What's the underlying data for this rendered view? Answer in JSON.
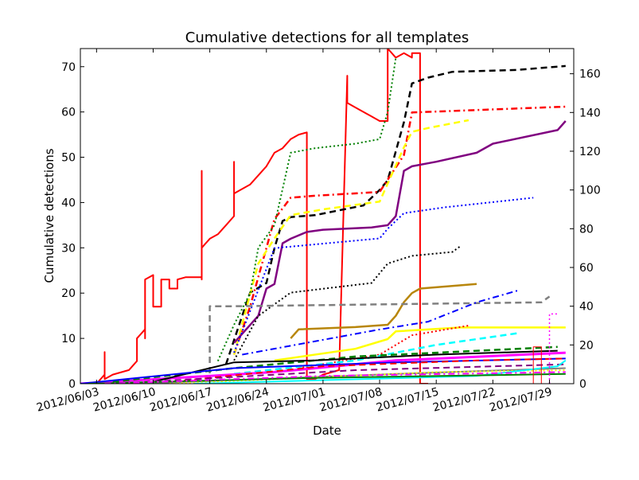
{
  "chart_data": {
    "type": "line",
    "title": "Cumulative detections for all templates",
    "xlabel": "Date",
    "ylabel": "Cumulative detections",
    "x_range": [
      "2012/06/01",
      "2012/08/01"
    ],
    "ylim": [
      0,
      74
    ],
    "y2lim": [
      0,
      173
    ],
    "x_ticks": [
      "2012/06/03",
      "2012/06/10",
      "2012/06/17",
      "2012/06/24",
      "2012/07/01",
      "2012/07/08",
      "2012/07/15",
      "2012/07/22",
      "2012/07/29"
    ],
    "y_ticks": [
      0,
      10,
      20,
      30,
      40,
      50,
      60,
      70
    ],
    "y2_ticks": [
      0,
      20,
      40,
      60,
      80,
      100,
      120,
      140,
      160
    ],
    "grid": false,
    "legend": "none",
    "series": [
      {
        "color": "#ff0000",
        "style": "solid",
        "width": 2,
        "axis": "left",
        "points": [
          [
            "2012/06/01",
            0
          ],
          [
            "2012/06/03",
            0
          ],
          [
            "2012/06/04",
            2
          ],
          [
            "2012/06/04",
            7
          ],
          [
            "2012/06/04",
            1
          ],
          [
            "2012/06/05",
            2
          ],
          [
            "2012/06/07",
            3
          ],
          [
            "2012/06/08",
            5
          ],
          [
            "2012/06/08",
            10
          ],
          [
            "2012/06/09",
            12
          ],
          [
            "2012/06/09",
            16
          ],
          [
            "2012/06/09",
            10
          ],
          [
            "2012/06/09",
            23
          ],
          [
            "2012/06/10",
            24
          ],
          [
            "2012/06/10",
            17
          ],
          [
            "2012/06/11",
            17
          ],
          [
            "2012/06/11",
            23
          ],
          [
            "2012/06/12",
            23
          ],
          [
            "2012/06/12",
            21
          ],
          [
            "2012/06/13",
            21
          ],
          [
            "2012/06/13",
            23
          ],
          [
            "2012/06/14",
            23.5
          ],
          [
            "2012/06/16",
            23.5
          ],
          [
            "2012/06/16",
            47
          ],
          [
            "2012/06/16",
            23
          ],
          [
            "2012/06/16",
            30
          ],
          [
            "2012/06/17",
            32
          ],
          [
            "2012/06/18",
            33
          ],
          [
            "2012/06/19",
            35
          ],
          [
            "2012/06/20",
            37
          ],
          [
            "2012/06/20",
            49
          ],
          [
            "2012/06/20",
            42
          ],
          [
            "2012/06/21",
            43
          ],
          [
            "2012/06/22",
            44
          ],
          [
            "2012/06/23",
            46
          ],
          [
            "2012/06/24",
            48
          ],
          [
            "2012/06/25",
            51
          ],
          [
            "2012/06/26",
            52
          ],
          [
            "2012/06/27",
            54
          ],
          [
            "2012/06/28",
            55
          ],
          [
            "2012/06/29",
            55.5
          ],
          [
            "2012/06/29",
            1
          ],
          [
            "2012/06/30",
            1
          ],
          [
            "2012/07/01",
            2
          ],
          [
            "2012/07/03",
            3
          ],
          [
            "2012/07/04",
            68
          ],
          [
            "2012/07/04",
            62
          ],
          [
            "2012/07/05",
            61
          ],
          [
            "2012/07/06",
            60
          ],
          [
            "2012/07/07",
            59
          ],
          [
            "2012/07/08",
            58
          ],
          [
            "2012/07/09",
            58
          ],
          [
            "2012/07/09",
            74
          ],
          [
            "2012/07/10",
            72
          ],
          [
            "2012/07/11",
            73
          ],
          [
            "2012/07/12",
            72
          ],
          [
            "2012/07/12",
            73
          ],
          [
            "2012/07/13",
            73
          ],
          [
            "2012/07/13",
            0
          ],
          [
            "2012/07/14",
            0
          ]
        ]
      },
      {
        "color": "#000000",
        "style": "dashed",
        "width": 2.5,
        "axis": "right",
        "points": [
          [
            "2012/06/19",
            10
          ],
          [
            "2012/06/21",
            35
          ],
          [
            "2012/06/22",
            47
          ],
          [
            "2012/06/24",
            52
          ],
          [
            "2012/06/25",
            70
          ],
          [
            "2012/06/26",
            84
          ],
          [
            "2012/06/27",
            86
          ],
          [
            "2012/06/30",
            87
          ],
          [
            "2012/07/06",
            92
          ],
          [
            "2012/07/08",
            100
          ],
          [
            "2012/07/09",
            105
          ],
          [
            "2012/07/11",
            135
          ],
          [
            "2012/07/12",
            155
          ],
          [
            "2012/07/14",
            158
          ],
          [
            "2012/07/17",
            161
          ],
          [
            "2012/07/25",
            162
          ],
          [
            "2012/07/31",
            164
          ]
        ]
      },
      {
        "color": "#ff0000",
        "style": "dashdot",
        "width": 2.5,
        "axis": "right",
        "points": [
          [
            "2012/06/20",
            15
          ],
          [
            "2012/06/22",
            40
          ],
          [
            "2012/06/25",
            85
          ],
          [
            "2012/06/27",
            96
          ],
          [
            "2012/06/30",
            97
          ],
          [
            "2012/07/08",
            99
          ],
          [
            "2012/07/11",
            118
          ],
          [
            "2012/07/12",
            140
          ],
          [
            "2012/07/31",
            143
          ]
        ]
      },
      {
        "color": "#ffff00",
        "style": "dashed",
        "width": 2.5,
        "axis": "right",
        "points": [
          [
            "2012/06/20",
            15
          ],
          [
            "2012/06/23",
            62
          ],
          [
            "2012/06/25",
            75
          ],
          [
            "2012/06/27",
            87
          ],
          [
            "2012/07/01",
            90
          ],
          [
            "2012/07/08",
            94
          ],
          [
            "2012/07/11",
            122
          ],
          [
            "2012/07/12",
            130
          ],
          [
            "2012/07/14",
            132
          ],
          [
            "2012/07/19",
            136
          ]
        ]
      },
      {
        "color": "#800080",
        "style": "solid",
        "width": 2.5,
        "axis": "left",
        "points": [
          [
            "2012/06/20",
            9
          ],
          [
            "2012/06/23",
            15
          ],
          [
            "2012/06/24",
            21
          ],
          [
            "2012/06/25",
            22
          ],
          [
            "2012/06/26",
            31
          ],
          [
            "2012/06/27",
            32
          ],
          [
            "2012/06/29",
            33.5
          ],
          [
            "2012/07/01",
            34
          ],
          [
            "2012/07/07",
            34.5
          ],
          [
            "2012/07/09",
            35
          ],
          [
            "2012/07/10",
            37
          ],
          [
            "2012/07/11",
            47
          ],
          [
            "2012/07/12",
            48
          ],
          [
            "2012/07/15",
            49
          ],
          [
            "2012/07/20",
            51
          ],
          [
            "2012/07/22",
            53
          ],
          [
            "2012/07/30",
            56
          ],
          [
            "2012/07/31",
            58
          ]
        ]
      },
      {
        "color": "#008000",
        "style": "dotted",
        "width": 2,
        "axis": "left",
        "points": [
          [
            "2012/06/18",
            5
          ],
          [
            "2012/06/20",
            13
          ],
          [
            "2012/06/22",
            20
          ],
          [
            "2012/06/23",
            30
          ],
          [
            "2012/06/25",
            35
          ],
          [
            "2012/06/27",
            51
          ],
          [
            "2012/06/30",
            52
          ],
          [
            "2012/07/05",
            53
          ],
          [
            "2012/07/08",
            54
          ],
          [
            "2012/07/09",
            60
          ],
          [
            "2012/07/10",
            72
          ]
        ]
      },
      {
        "color": "#0000ff",
        "style": "dotted",
        "width": 2,
        "axis": "right",
        "points": [
          [
            "2012/06/20",
            16
          ],
          [
            "2012/06/25",
            70
          ],
          [
            "2012/07/08",
            75
          ],
          [
            "2012/07/09",
            80
          ],
          [
            "2012/07/11",
            88
          ],
          [
            "2012/07/16",
            91
          ],
          [
            "2012/07/27",
            96
          ]
        ]
      },
      {
        "color": "#000000",
        "style": "dotted",
        "width": 2,
        "axis": "right",
        "points": [
          [
            "2012/06/20",
            12
          ],
          [
            "2012/06/23",
            35
          ],
          [
            "2012/06/27",
            47
          ],
          [
            "2012/07/07",
            52
          ],
          [
            "2012/07/09",
            62
          ],
          [
            "2012/07/12",
            66
          ],
          [
            "2012/07/17",
            68
          ],
          [
            "2012/07/18",
            71
          ]
        ]
      },
      {
        "color": "#b8860b",
        "style": "solid",
        "width": 2.5,
        "axis": "left",
        "points": [
          [
            "2012/06/27",
            10
          ],
          [
            "2012/06/28",
            12
          ],
          [
            "2012/07/05",
            12.5
          ],
          [
            "2012/07/09",
            13
          ],
          [
            "2012/07/10",
            15
          ],
          [
            "2012/07/11",
            18
          ],
          [
            "2012/07/12",
            20
          ],
          [
            "2012/07/13",
            21
          ],
          [
            "2012/07/20",
            22
          ]
        ]
      },
      {
        "color": "#808080",
        "style": "dashed",
        "width": 2.5,
        "axis": "right",
        "points": [
          [
            "2012/06/17",
            0
          ],
          [
            "2012/06/17",
            40
          ],
          [
            "2012/06/20",
            40
          ],
          [
            "2012/07/28",
            42
          ],
          [
            "2012/07/29",
            45
          ]
        ]
      },
      {
        "color": "#0000ff",
        "style": "dashdot",
        "width": 2,
        "axis": "right",
        "points": [
          [
            "2012/06/21",
            15
          ],
          [
            "2012/07/08",
            28
          ],
          [
            "2012/07/14",
            32
          ],
          [
            "2012/07/20",
            42
          ],
          [
            "2012/07/25",
            48
          ]
        ]
      },
      {
        "color": "#ffff00",
        "style": "solid",
        "width": 2.5,
        "axis": "right",
        "points": [
          [
            "2012/06/25",
            12
          ],
          [
            "2012/07/05",
            18
          ],
          [
            "2012/07/09",
            23
          ],
          [
            "2012/07/10",
            27
          ],
          [
            "2012/07/18",
            29
          ],
          [
            "2012/07/31",
            29
          ]
        ]
      },
      {
        "color": "#ff0000",
        "style": "dotted",
        "width": 2,
        "axis": "right",
        "points": [
          [
            "2012/06/28",
            8
          ],
          [
            "2012/07/08",
            15
          ],
          [
            "2012/07/12",
            25
          ],
          [
            "2012/07/19",
            30
          ]
        ]
      },
      {
        "color": "#00ffff",
        "style": "dashed",
        "width": 2.5,
        "axis": "right",
        "points": [
          [
            "2012/06/20",
            5
          ],
          [
            "2012/07/05",
            12
          ],
          [
            "2012/07/15",
            20
          ],
          [
            "2012/07/25",
            26
          ]
        ]
      },
      {
        "color": "#ff00ff",
        "style": "solid",
        "width": 3,
        "axis": "right",
        "points": [
          [
            "2012/06/01",
            0
          ],
          [
            "2012/06/25",
            6
          ],
          [
            "2012/07/10",
            12
          ],
          [
            "2012/07/31",
            16
          ]
        ]
      },
      {
        "color": "#008000",
        "style": "dashed",
        "width": 2.5,
        "axis": "right",
        "points": [
          [
            "2012/06/05",
            1
          ],
          [
            "2012/06/20",
            8
          ],
          [
            "2012/07/05",
            14
          ],
          [
            "2012/07/15",
            16
          ],
          [
            "2012/07/30",
            19
          ]
        ]
      },
      {
        "color": "#000000",
        "style": "solid",
        "width": 2,
        "axis": "right",
        "points": [
          [
            "2012/06/10",
            1
          ],
          [
            "2012/06/20",
            11
          ],
          [
            "2012/06/30",
            12
          ],
          [
            "2012/07/15",
            15
          ],
          [
            "2012/07/30",
            17
          ]
        ]
      },
      {
        "color": "#0000ff",
        "style": "solid",
        "width": 2,
        "axis": "right",
        "points": [
          [
            "2012/06/01",
            0
          ],
          [
            "2012/06/20",
            8
          ],
          [
            "2012/07/10",
            11
          ],
          [
            "2012/07/31",
            13
          ]
        ]
      },
      {
        "color": "#ff0000",
        "style": "dashed",
        "width": 2,
        "axis": "right",
        "points": [
          [
            "2012/06/10",
            0
          ],
          [
            "2012/07/01",
            9
          ],
          [
            "2012/07/20",
            12
          ],
          [
            "2012/07/31",
            13
          ]
        ]
      },
      {
        "color": "#800080",
        "style": "dashed",
        "width": 2,
        "axis": "right",
        "points": [
          [
            "2012/06/05",
            0
          ],
          [
            "2012/07/05",
            7
          ],
          [
            "2012/07/31",
            10
          ]
        ]
      },
      {
        "color": "#808080",
        "style": "solid",
        "width": 2,
        "axis": "right",
        "points": [
          [
            "2012/06/08",
            0
          ],
          [
            "2012/07/10",
            5
          ],
          [
            "2012/07/31",
            8
          ]
        ]
      },
      {
        "color": "#ffff00",
        "style": "dotted",
        "width": 2,
        "axis": "right",
        "points": [
          [
            "2012/06/12",
            0
          ],
          [
            "2012/07/15",
            6
          ],
          [
            "2012/07/31",
            7
          ]
        ]
      },
      {
        "color": "#00ffff",
        "style": "solid",
        "width": 2,
        "axis": "right",
        "points": [
          [
            "2012/06/15",
            0
          ],
          [
            "2012/07/20",
            4
          ],
          [
            "2012/07/30",
            9
          ],
          [
            "2012/07/31",
            12
          ]
        ]
      },
      {
        "color": "#008000",
        "style": "solid",
        "width": 2,
        "axis": "right",
        "points": [
          [
            "2012/06/02",
            0
          ],
          [
            "2012/06/30",
            3
          ],
          [
            "2012/07/31",
            5
          ]
        ]
      },
      {
        "color": "#ff00ff",
        "style": "dashdot",
        "width": 2,
        "axis": "right",
        "points": [
          [
            "2012/06/04",
            0
          ],
          [
            "2012/07/01",
            4
          ],
          [
            "2012/07/31",
            6
          ]
        ]
      },
      {
        "color": "#ff0000",
        "style": "solid",
        "width": 1,
        "axis": "right",
        "points": [
          [
            "2012/07/27",
            0
          ],
          [
            "2012/07/27",
            19
          ],
          [
            "2012/07/28",
            19
          ],
          [
            "2012/07/28",
            0
          ]
        ]
      },
      {
        "color": "#ff00ff",
        "style": "dotted",
        "width": 1.5,
        "axis": "right",
        "points": [
          [
            "2012/07/29",
            0
          ],
          [
            "2012/07/29",
            36
          ],
          [
            "2012/07/30",
            36
          ]
        ]
      }
    ]
  }
}
